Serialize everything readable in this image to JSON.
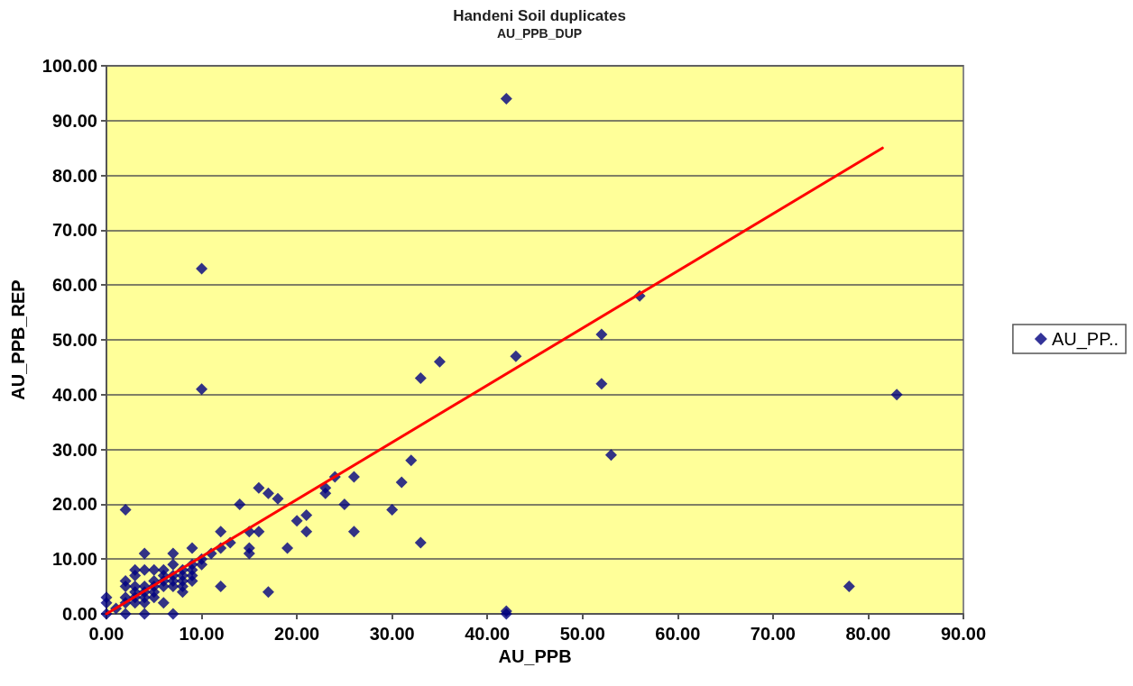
{
  "chart_data": {
    "type": "scatter",
    "title": "Handeni Soil duplicates",
    "subtitle": "AU_PPB_DUP",
    "xlabel": "AU_PPB",
    "ylabel": "AU_PPB_REP",
    "xlim": [
      0,
      90
    ],
    "ylim": [
      0,
      100
    ],
    "xticks": [
      {
        "value": 0,
        "label": "0.00"
      },
      {
        "value": 10,
        "label": "10.00"
      },
      {
        "value": 20,
        "label": "20.00"
      },
      {
        "value": 30,
        "label": "30.00"
      },
      {
        "value": 40,
        "label": "40.00"
      },
      {
        "value": 50,
        "label": "50.00"
      },
      {
        "value": 60,
        "label": "60.00"
      },
      {
        "value": 70,
        "label": "70.00"
      },
      {
        "value": 80,
        "label": "80.00"
      },
      {
        "value": 90,
        "label": "90.00"
      }
    ],
    "yticks": [
      {
        "value": 0,
        "label": "0.00"
      },
      {
        "value": 10,
        "label": "10.00"
      },
      {
        "value": 20,
        "label": "20.00"
      },
      {
        "value": 30,
        "label": "30.00"
      },
      {
        "value": 40,
        "label": "40.00"
      },
      {
        "value": 50,
        "label": "50.00"
      },
      {
        "value": 60,
        "label": "60.00"
      },
      {
        "value": 70,
        "label": "70.00"
      },
      {
        "value": 80,
        "label": "80.00"
      },
      {
        "value": 90,
        "label": "90.00"
      },
      {
        "value": 100,
        "label": "100.00"
      }
    ],
    "grid": "y",
    "legend": "right",
    "marker": "diamond",
    "series": [
      {
        "name": "AU_PP..",
        "color": "#000080",
        "x": [
          42,
          10,
          10,
          56,
          52,
          43,
          52,
          35,
          33,
          83,
          53,
          32,
          31,
          24,
          26,
          23,
          23,
          16,
          17,
          18,
          14,
          25,
          30,
          20,
          21,
          21,
          26,
          16,
          15,
          15,
          15,
          19,
          33,
          12,
          13,
          12,
          11,
          10,
          10,
          12,
          17,
          78,
          42,
          42,
          2,
          0,
          0,
          0,
          2,
          4,
          7,
          4,
          7,
          9,
          2,
          2,
          3,
          3,
          4,
          5,
          6,
          7,
          8,
          9,
          3,
          4,
          5,
          5,
          6,
          6,
          7,
          8,
          9,
          8,
          7,
          8,
          2,
          3,
          4,
          5,
          6,
          9,
          1,
          2,
          3,
          4,
          5,
          6,
          4,
          3,
          7,
          8,
          9
        ],
        "values": [
          94,
          63,
          41,
          58,
          51,
          47,
          42,
          46,
          43,
          40,
          29,
          28,
          24,
          25,
          25,
          23,
          22,
          23,
          22,
          21,
          20,
          20,
          19,
          17,
          18,
          15,
          15,
          15,
          15,
          12,
          11,
          12,
          13,
          15,
          13,
          12,
          11,
          10,
          9,
          5,
          4,
          5,
          0,
          0.5,
          19,
          0,
          2,
          3,
          0,
          0,
          0,
          11,
          11,
          12,
          6,
          5,
          7,
          8,
          8,
          8,
          8,
          9,
          8,
          8,
          4,
          4,
          5,
          4,
          5,
          6,
          7,
          6,
          7,
          5,
          5,
          4,
          3,
          2,
          2,
          3,
          2,
          9,
          1,
          2,
          3,
          5,
          6,
          7,
          3,
          5,
          6,
          7,
          6
        ]
      },
      {
        "type": "line",
        "color": "#ff0000",
        "marker": "none",
        "x": [
          0,
          81.5
        ],
        "values": [
          0,
          85
        ]
      }
    ]
  }
}
